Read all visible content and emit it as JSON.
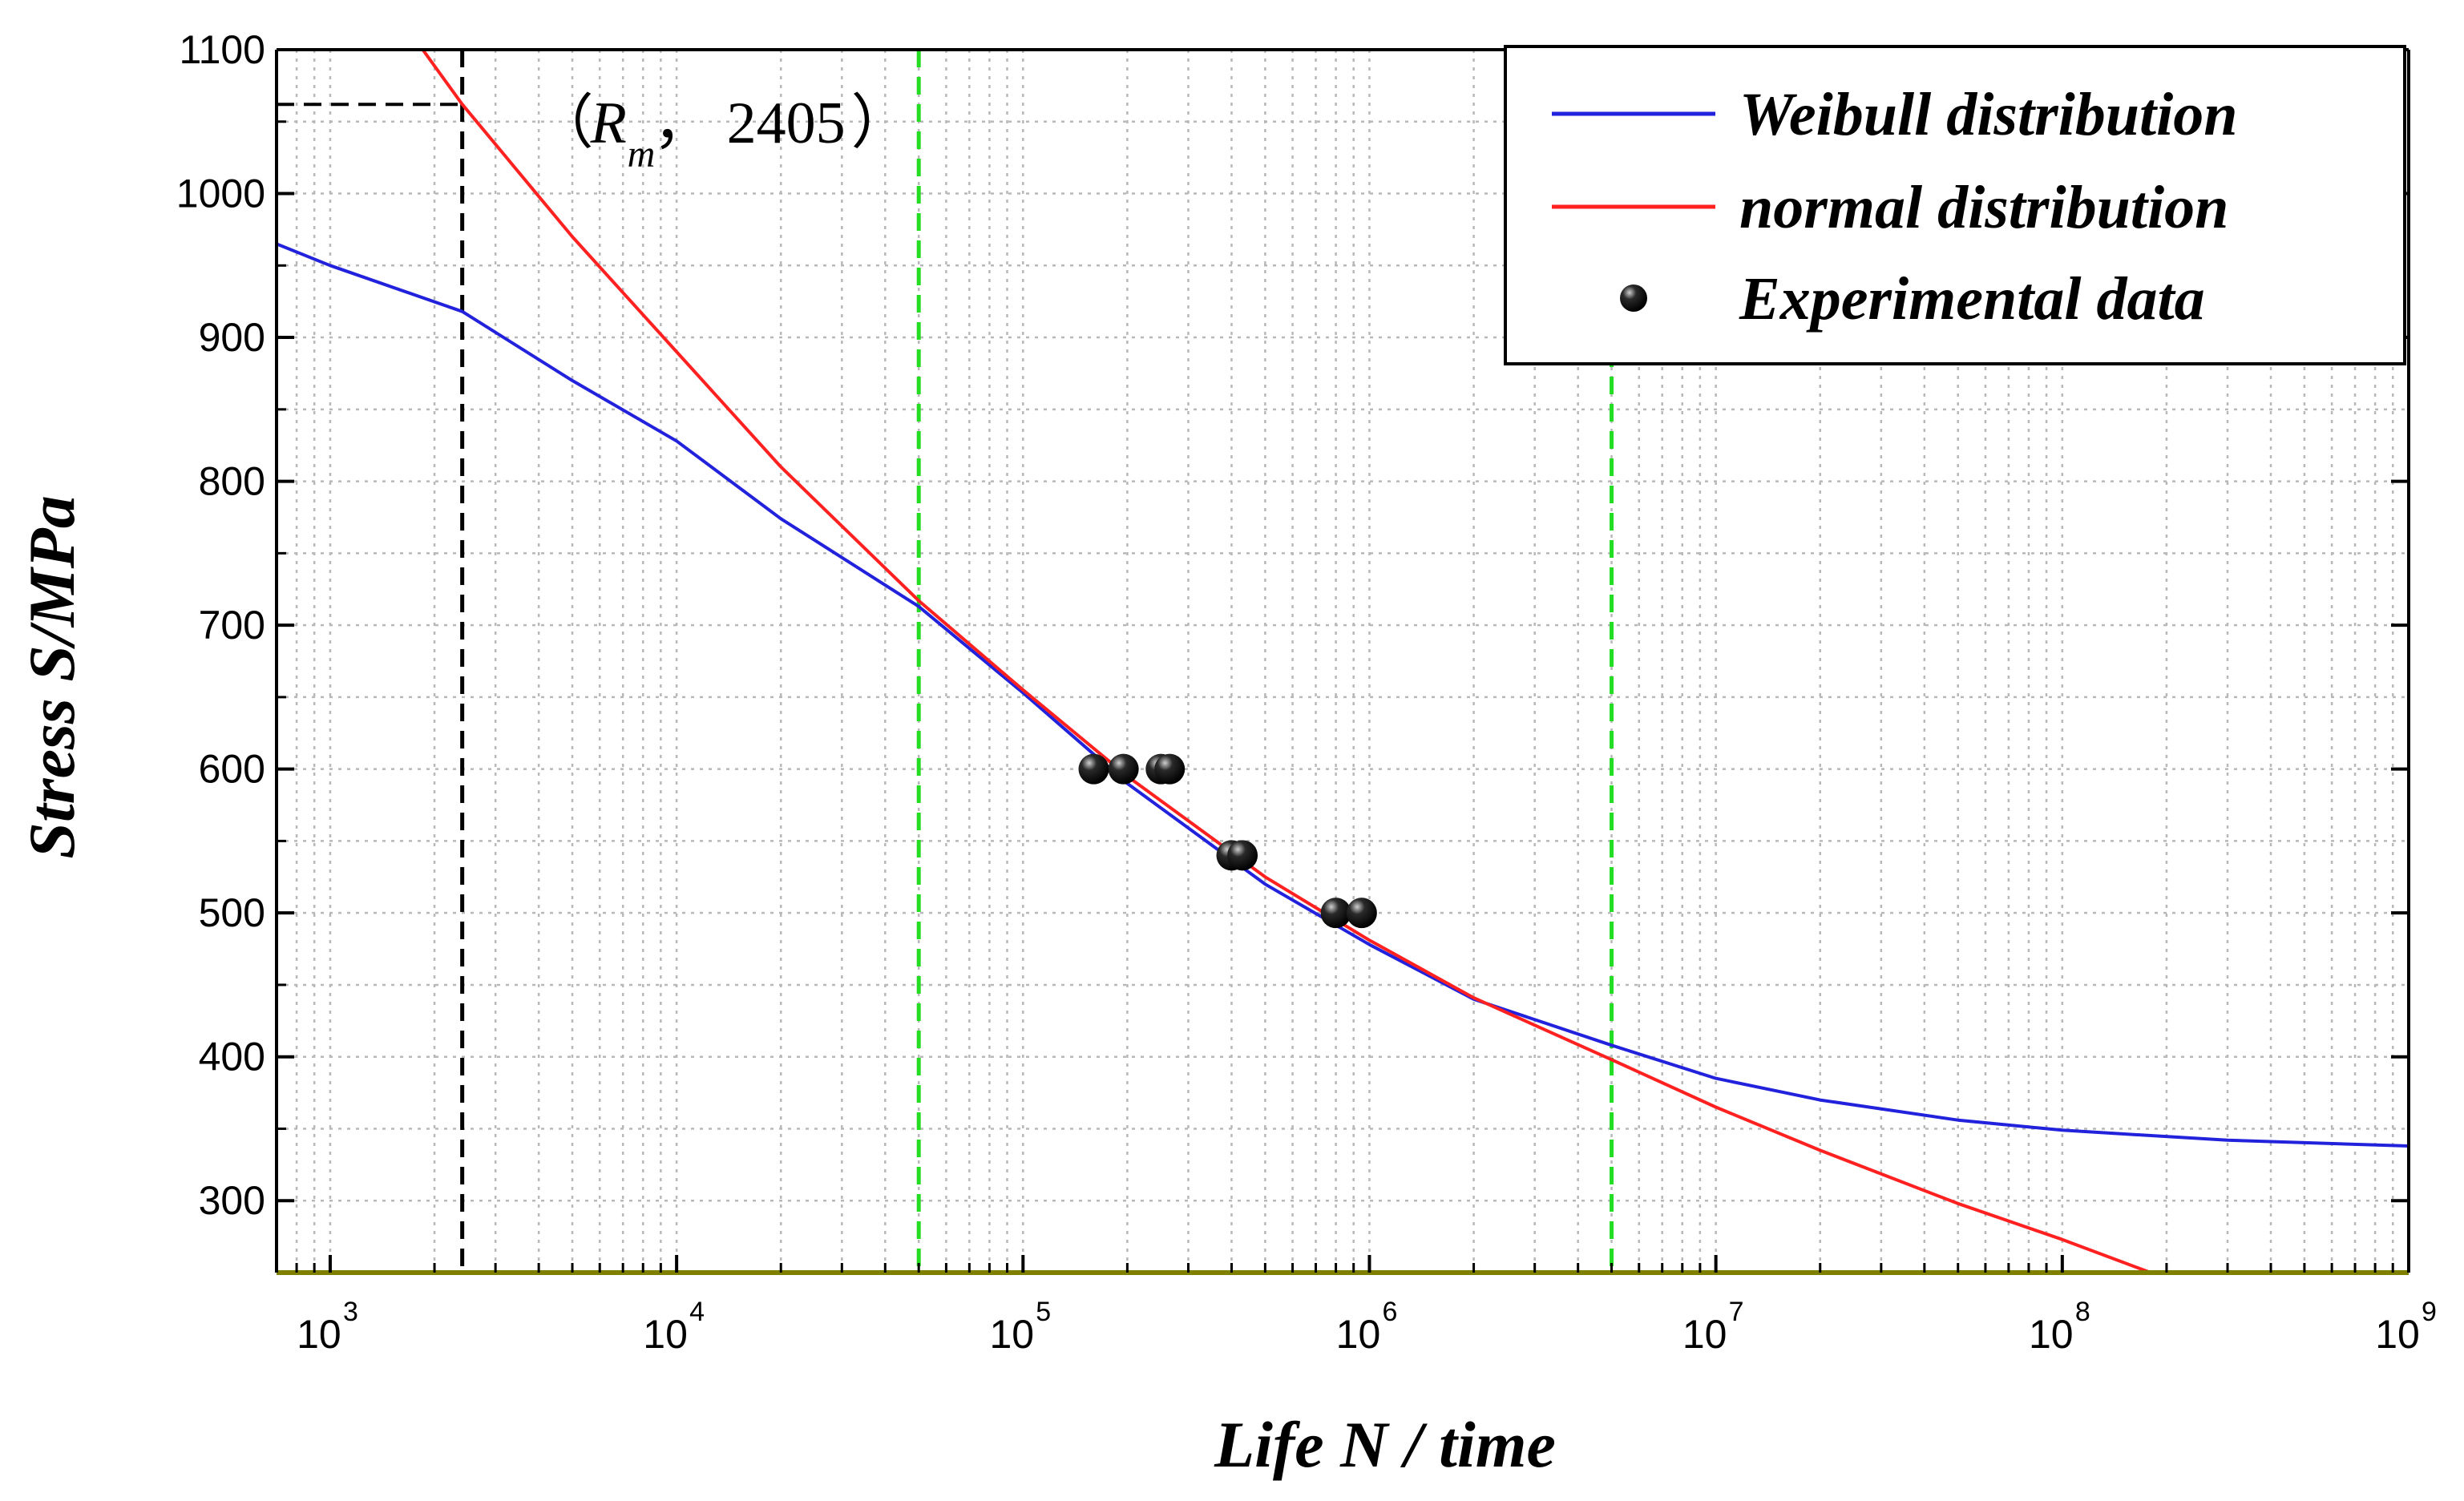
{
  "chart_data": {
    "type": "line",
    "xlabel": "Life N / time",
    "ylabel": "Stress S/MPa",
    "xscale": "log10",
    "xlim": [
      700,
      1000000000
    ],
    "ylim": [
      250,
      1100
    ],
    "x_ticks": [
      {
        "base": "10",
        "exp": "3",
        "value": 1000
      },
      {
        "base": "10",
        "exp": "4",
        "value": 10000
      },
      {
        "base": "10",
        "exp": "5",
        "value": 100000
      },
      {
        "base": "10",
        "exp": "6",
        "value": 1000000
      },
      {
        "base": "10",
        "exp": "7",
        "value": 10000000
      },
      {
        "base": "10",
        "exp": "8",
        "value": 100000000
      },
      {
        "base": "10",
        "exp": "9",
        "value": 1000000000
      }
    ],
    "y_ticks": [
      "300",
      "400",
      "500",
      "600",
      "700",
      "800",
      "900",
      "1000",
      "1100"
    ],
    "grid": true,
    "legend_position": "top-right",
    "colors": {
      "weibull": "#2222dd",
      "normal": "#ff2020",
      "data": "#000000",
      "vline_green": "#22dd22",
      "vline_black": "#000000",
      "baseline": "#808000"
    },
    "series": [
      {
        "name": "Weibull distribution",
        "style": "line",
        "points": [
          [
            700,
            965
          ],
          [
            1000,
            950
          ],
          [
            2405,
            918
          ],
          [
            5000,
            870
          ],
          [
            10000,
            828
          ],
          [
            20000,
            774
          ],
          [
            50000,
            713
          ],
          [
            100000,
            653
          ],
          [
            200000,
            590
          ],
          [
            500000,
            520
          ],
          [
            1000000,
            478
          ],
          [
            2000000,
            440
          ],
          [
            5000000,
            408
          ],
          [
            10000000,
            385
          ],
          [
            20000000,
            370
          ],
          [
            50000000,
            356
          ],
          [
            100000000,
            349
          ],
          [
            300000000,
            342
          ],
          [
            1000000000,
            338
          ]
        ]
      },
      {
        "name": "normal distribution",
        "style": "line",
        "points": [
          [
            1850,
            1100
          ],
          [
            2405,
            1062
          ],
          [
            5000,
            970
          ],
          [
            10000,
            890
          ],
          [
            20000,
            810
          ],
          [
            50000,
            717
          ],
          [
            100000,
            655
          ],
          [
            200000,
            595
          ],
          [
            500000,
            525
          ],
          [
            1000000,
            481
          ],
          [
            2000000,
            441
          ],
          [
            5000000,
            398
          ],
          [
            10000000,
            365
          ],
          [
            20000000,
            335
          ],
          [
            50000000,
            298
          ],
          [
            100000000,
            273
          ],
          [
            180000000,
            250
          ]
        ]
      },
      {
        "name": "Experimental data",
        "style": "scatter",
        "points": [
          [
            160000,
            600
          ],
          [
            195000,
            600
          ],
          [
            250000,
            600
          ],
          [
            265000,
            600
          ],
          [
            400000,
            540
          ],
          [
            430000,
            540
          ],
          [
            800000,
            500
          ],
          [
            950000,
            500
          ]
        ]
      }
    ],
    "reference_lines": [
      {
        "orientation": "vertical",
        "x": 50000,
        "style": "dashed",
        "color": "#22dd22"
      },
      {
        "orientation": "vertical",
        "x": 5000000,
        "style": "dashed",
        "color": "#22dd22"
      },
      {
        "orientation": "vertical",
        "x": 2405,
        "style": "dashed",
        "color": "#000000"
      },
      {
        "orientation": "horizontal",
        "y": 1062,
        "from_x": 700,
        "to_x": 2405,
        "style": "dashed",
        "color": "#000000"
      }
    ],
    "annotation": {
      "open": "（",
      "R": "R",
      "m": "m",
      "sep": "，",
      "value": "2405",
      "close": "）",
      "x": 2405,
      "y": 1062
    }
  }
}
